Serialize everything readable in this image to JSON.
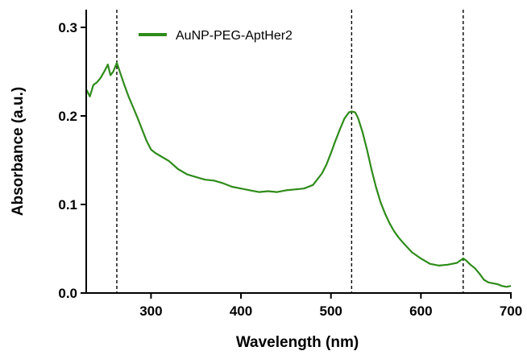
{
  "chart_data": {
    "type": "line",
    "xlabel": "Wavelength (nm)",
    "ylabel": "Absorbance (a.u.)",
    "xlim": [
      228,
      700
    ],
    "ylim": [
      0.0,
      0.32
    ],
    "x_ticks": [
      300,
      400,
      500,
      600,
      700
    ],
    "x_tick_labels": [
      "300",
      "400",
      "500",
      "600",
      "700"
    ],
    "y_ticks": [
      0.0,
      0.1,
      0.2,
      0.3
    ],
    "y_tick_labels": [
      "0.0",
      "0.1",
      "0.2",
      "0.3"
    ],
    "grid": false,
    "legend": {
      "placement": "top-left",
      "entries": [
        "AuNP-PEG-AptHer2"
      ]
    },
    "reference_lines_x": [
      262,
      523,
      647
    ],
    "series": [
      {
        "name": "AuNP-PEG-AptHer2",
        "color": "#2e8b1a",
        "x": [
          228,
          232,
          236,
          240,
          244,
          248,
          252,
          255,
          258,
          262,
          266,
          270,
          275,
          280,
          285,
          290,
          295,
          300,
          305,
          310,
          320,
          330,
          340,
          350,
          360,
          370,
          380,
          390,
          400,
          410,
          420,
          430,
          440,
          450,
          460,
          470,
          480,
          490,
          495,
          500,
          505,
          510,
          515,
          520,
          523,
          527,
          530,
          535,
          540,
          545,
          550,
          555,
          560,
          565,
          570,
          575,
          580,
          590,
          600,
          610,
          620,
          630,
          640,
          647,
          650,
          655,
          660,
          665,
          670,
          675,
          680,
          685,
          690,
          695,
          700
        ],
        "y": [
          0.23,
          0.222,
          0.235,
          0.238,
          0.243,
          0.25,
          0.258,
          0.246,
          0.25,
          0.26,
          0.248,
          0.236,
          0.222,
          0.21,
          0.198,
          0.185,
          0.172,
          0.162,
          0.158,
          0.155,
          0.149,
          0.14,
          0.134,
          0.131,
          0.128,
          0.127,
          0.124,
          0.12,
          0.118,
          0.116,
          0.114,
          0.115,
          0.114,
          0.116,
          0.117,
          0.118,
          0.122,
          0.135,
          0.145,
          0.158,
          0.172,
          0.185,
          0.197,
          0.204,
          0.205,
          0.204,
          0.198,
          0.182,
          0.162,
          0.14,
          0.12,
          0.103,
          0.09,
          0.079,
          0.07,
          0.063,
          0.057,
          0.046,
          0.039,
          0.033,
          0.031,
          0.032,
          0.034,
          0.039,
          0.037,
          0.032,
          0.028,
          0.022,
          0.015,
          0.012,
          0.011,
          0.01,
          0.008,
          0.007,
          0.008
        ]
      }
    ]
  }
}
